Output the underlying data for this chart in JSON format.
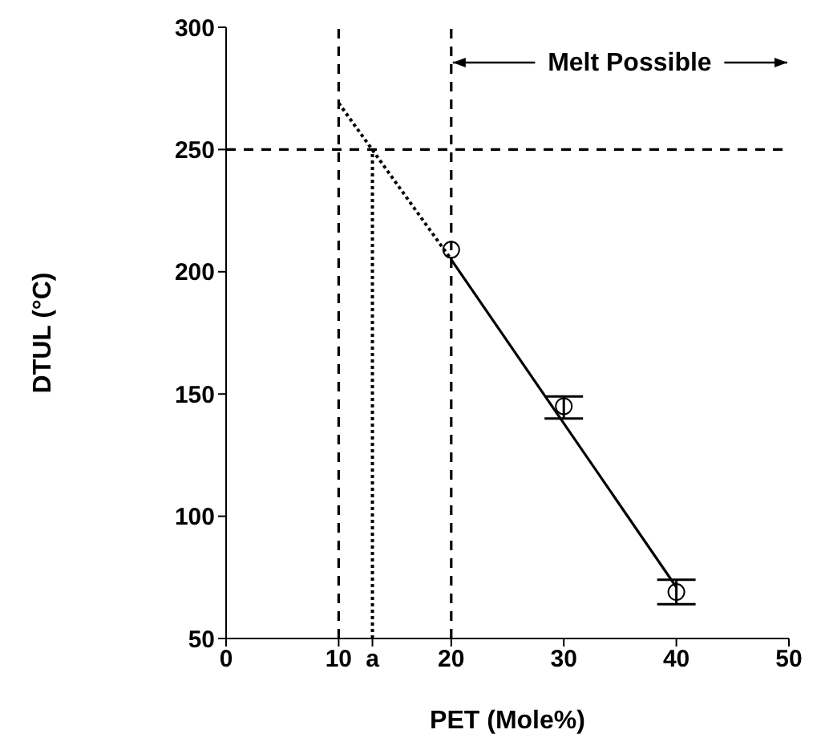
{
  "chart_data": {
    "type": "scatter",
    "xlabel": "PET (Mole%)",
    "ylabel": "DTUL (°C)",
    "xlim": [
      0,
      50
    ],
    "ylim": [
      50,
      300
    ],
    "xticks": [
      0,
      10,
      {
        "value": 13,
        "label": "a"
      },
      20,
      30,
      40,
      50
    ],
    "yticks": [
      50,
      100,
      150,
      200,
      250,
      300
    ],
    "marker": "circle",
    "series": [
      {
        "color": "#000000",
        "x": [
          20,
          30,
          40
        ],
        "values": [
          209,
          145,
          69
        ],
        "errors": [
          null,
          [
            140,
            149
          ],
          [
            64,
            74
          ]
        ]
      },
      {
        "type": "line",
        "color": "#000000",
        "line_style": "dotted",
        "marker": "none",
        "x": [
          10,
          20
        ],
        "values": [
          269,
          205
        ]
      },
      {
        "type": "line",
        "color": "#000000",
        "line_style": "solid",
        "marker": "none",
        "x": [
          20,
          40
        ],
        "values": [
          205,
          71
        ]
      },
      {
        "type": "line",
        "color": "#000000",
        "line_style": "dotted",
        "marker": "none",
        "x": [
          13,
          13
        ],
        "values": [
          50,
          250
        ]
      }
    ],
    "ref_lines": [
      {
        "axis": "x",
        "value": 10,
        "line_style": "dashed",
        "color": "#000000"
      },
      {
        "axis": "x",
        "value": 20,
        "line_style": "dashed",
        "color": "#000000"
      },
      {
        "axis": "y",
        "value": 250,
        "line_style": "dashed",
        "color": "#000000"
      }
    ],
    "annotations": [
      "Melt Possible"
    ]
  }
}
